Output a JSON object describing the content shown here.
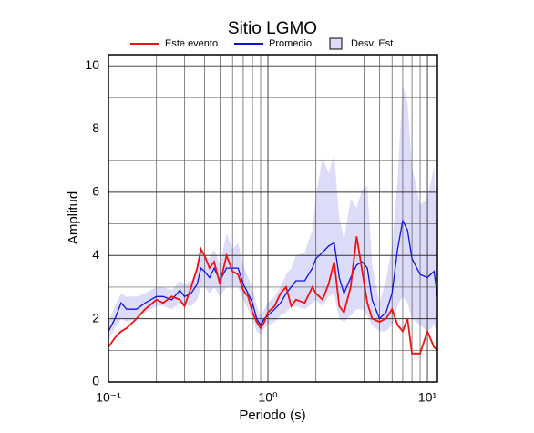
{
  "chart_data": {
    "type": "line",
    "title": "Sitio LGMO",
    "x_label": "Periodo (s)",
    "y_label": "Amplitud",
    "x_scale": "log",
    "xlim": [
      0.1,
      11.55
    ],
    "ylim": [
      0,
      10.35
    ],
    "xticks": [
      {
        "value": 0.1,
        "label": "10⁻¹"
      },
      {
        "value": 1,
        "label": "10⁰"
      },
      {
        "value": 10,
        "label": "10¹"
      }
    ],
    "xminor": [
      0.2,
      0.3,
      0.4,
      0.5,
      0.6,
      0.7,
      0.8,
      0.9,
      2,
      3,
      4,
      5,
      6,
      7,
      8,
      9
    ],
    "yticks": [
      0,
      2,
      4,
      6,
      8,
      10
    ],
    "yminor": [
      1,
      3,
      5,
      7,
      9
    ],
    "grid": true,
    "legend": "top",
    "x": [
      0.1,
      0.11,
      0.12,
      0.13,
      0.15,
      0.17,
      0.2,
      0.22,
      0.25,
      0.28,
      0.3,
      0.33,
      0.36,
      0.38,
      0.4,
      0.43,
      0.46,
      0.5,
      0.55,
      0.6,
      0.65,
      0.7,
      0.75,
      0.8,
      0.85,
      0.9,
      0.95,
      1.0,
      1.1,
      1.2,
      1.3,
      1.4,
      1.5,
      1.7,
      1.9,
      2.0,
      2.2,
      2.4,
      2.6,
      2.8,
      3.0,
      3.3,
      3.6,
      3.9,
      4.2,
      4.5,
      5.0,
      5.5,
      6.0,
      6.5,
      7.0,
      7.5,
      8.0,
      9.0,
      10.0,
      11.0,
      11.55
    ],
    "series": [
      {
        "name": "Este evento",
        "color": "#ee1111",
        "values": [
          1.1,
          1.4,
          1.6,
          1.7,
          2.0,
          2.3,
          2.6,
          2.5,
          2.7,
          2.6,
          2.4,
          3.0,
          3.6,
          4.2,
          4.0,
          3.6,
          3.8,
          3.1,
          4.0,
          3.5,
          3.4,
          2.9,
          2.7,
          2.2,
          1.9,
          1.7,
          1.9,
          2.2,
          2.4,
          2.8,
          3.0,
          2.4,
          2.6,
          2.5,
          3.0,
          2.8,
          2.6,
          3.1,
          3.8,
          2.4,
          2.2,
          3.0,
          4.6,
          3.5,
          2.5,
          2.0,
          1.9,
          2.0,
          2.3,
          1.8,
          1.6,
          2.0,
          0.9,
          0.9,
          1.6,
          1.1,
          1.0
        ]
      },
      {
        "name": "Promedio",
        "color": "#1111dd",
        "values": [
          1.6,
          2.0,
          2.5,
          2.3,
          2.3,
          2.5,
          2.7,
          2.7,
          2.6,
          2.9,
          2.7,
          2.8,
          3.1,
          3.6,
          3.5,
          3.3,
          3.6,
          3.2,
          3.6,
          3.6,
          3.6,
          3.1,
          2.8,
          2.5,
          2.0,
          1.8,
          2.0,
          2.1,
          2.3,
          2.5,
          2.8,
          3.0,
          3.2,
          3.2,
          3.6,
          3.9,
          4.1,
          4.3,
          4.4,
          3.3,
          2.8,
          3.3,
          3.7,
          3.8,
          3.6,
          2.6,
          2.0,
          2.2,
          2.8,
          4.2,
          5.1,
          4.8,
          3.9,
          3.4,
          3.3,
          3.5,
          2.7
        ]
      },
      {
        "name": "Desv. Est.",
        "color": "#dcdcf8",
        "lower": [
          1.3,
          1.7,
          2.0,
          1.9,
          2.0,
          2.2,
          2.4,
          2.4,
          2.3,
          2.5,
          2.4,
          2.4,
          2.6,
          3.0,
          3.0,
          2.8,
          3.0,
          2.7,
          3.0,
          3.0,
          3.0,
          2.6,
          2.3,
          2.0,
          1.6,
          1.5,
          1.7,
          1.8,
          1.9,
          2.1,
          2.2,
          2.4,
          2.4,
          2.3,
          2.5,
          2.6,
          2.4,
          2.7,
          2.8,
          2.0,
          1.9,
          2.1,
          2.3,
          2.3,
          2.1,
          1.8,
          1.6,
          1.6,
          1.8,
          2.4,
          2.7,
          2.5,
          2.0,
          1.8,
          1.6,
          1.8,
          1.5
        ],
        "upper": [
          1.9,
          2.4,
          2.8,
          2.7,
          2.7,
          2.8,
          3.0,
          3.0,
          2.9,
          3.2,
          3.1,
          3.2,
          3.6,
          4.3,
          4.0,
          3.9,
          4.2,
          3.7,
          4.7,
          4.2,
          4.4,
          3.7,
          3.3,
          3.0,
          2.4,
          2.1,
          2.3,
          2.5,
          2.7,
          3.0,
          3.4,
          3.6,
          4.0,
          4.1,
          4.8,
          5.9,
          7.1,
          6.6,
          7.2,
          5.2,
          4.5,
          5.8,
          5.5,
          6.1,
          6.2,
          3.7,
          2.5,
          3.2,
          4.3,
          6.4,
          9.4,
          8.8,
          6.8,
          5.6,
          5.8,
          6.8,
          4.6
        ]
      }
    ]
  }
}
